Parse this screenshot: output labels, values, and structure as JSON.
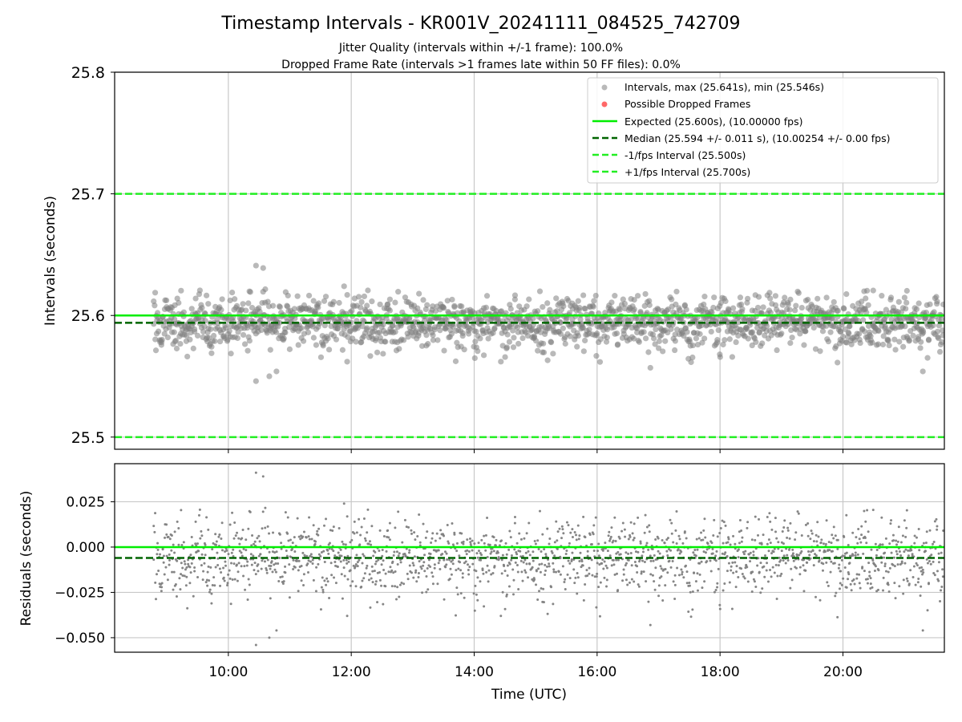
{
  "colors": {
    "points": "#808080",
    "dropped": "#ff4d4d",
    "expected": "#00ee00",
    "median": "#006400",
    "bounds": "#22ee22",
    "grid": "#c8c8c8"
  },
  "chart_data": [
    {
      "type": "scatter",
      "title": "Timestamp Intervals - KR001V_20241111_084525_742709",
      "subtitle_1": "Jitter Quality (intervals within +/-1 frame): 100.0%",
      "subtitle_2": "Dropped Frame Rate (intervals >1 frames late within 50 FF files): 0.0%",
      "xlabel": "",
      "ylabel": "Intervals (seconds)",
      "xlim_hours": [
        8.15,
        21.65
      ],
      "ylim": [
        25.49,
        25.8
      ],
      "yticks": [
        "25.5",
        "25.6",
        "25.7",
        "25.8"
      ],
      "grid": true,
      "legend_position": "top-right",
      "legend": {
        "intervals": "Intervals, max (25.641s), min (25.546s)",
        "dropped": "Possible Dropped Frames",
        "expected": "Expected (25.600s), (10.00000 fps)",
        "median": "Median (25.594 +/- 0.011 s), (10.00254 +/- 0.00 fps)",
        "minus": "-1/fps Interval (25.500s)",
        "plus": "+1/fps Interval (25.700s)"
      },
      "reference_lines": {
        "expected": 25.6,
        "median": 25.594,
        "minus_interval": 25.5,
        "plus_interval": 25.7
      },
      "series": [
        {
          "name": "Intervals",
          "points_count": 1750,
          "x_start": "08:47",
          "x_end": "21:38",
          "mean": 25.594,
          "std": 0.011,
          "max": 25.641,
          "min": 25.546
        }
      ],
      "outliers": [
        {
          "x": "10:27",
          "y": 25.641
        },
        {
          "x": "10:34",
          "y": 25.639
        },
        {
          "x": "10:27",
          "y": 25.546
        },
        {
          "x": "10:40",
          "y": 25.55
        },
        {
          "x": "10:47",
          "y": 25.554
        },
        {
          "x": "11:53",
          "y": 25.624
        },
        {
          "x": "11:56",
          "y": 25.562
        },
        {
          "x": "16:52",
          "y": 25.557
        },
        {
          "x": "21:18",
          "y": 25.554
        }
      ]
    },
    {
      "type": "scatter",
      "xlabel": "Time (UTC)",
      "ylabel": "Residuals (seconds)",
      "xlim_hours": [
        8.15,
        21.65
      ],
      "ylim": [
        -0.058,
        0.046
      ],
      "xticks": [
        "10:00",
        "12:00",
        "14:00",
        "16:00",
        "18:00",
        "20:00"
      ],
      "yticks": [
        "0.025",
        "0.000",
        "−0.025",
        "−0.050"
      ],
      "grid": true,
      "reference_lines": {
        "zero": 0.0,
        "median_offset": -0.006
      },
      "series": [
        {
          "name": "Residuals",
          "points_count": 1750,
          "min": -0.054,
          "max": 0.041
        }
      ]
    }
  ]
}
